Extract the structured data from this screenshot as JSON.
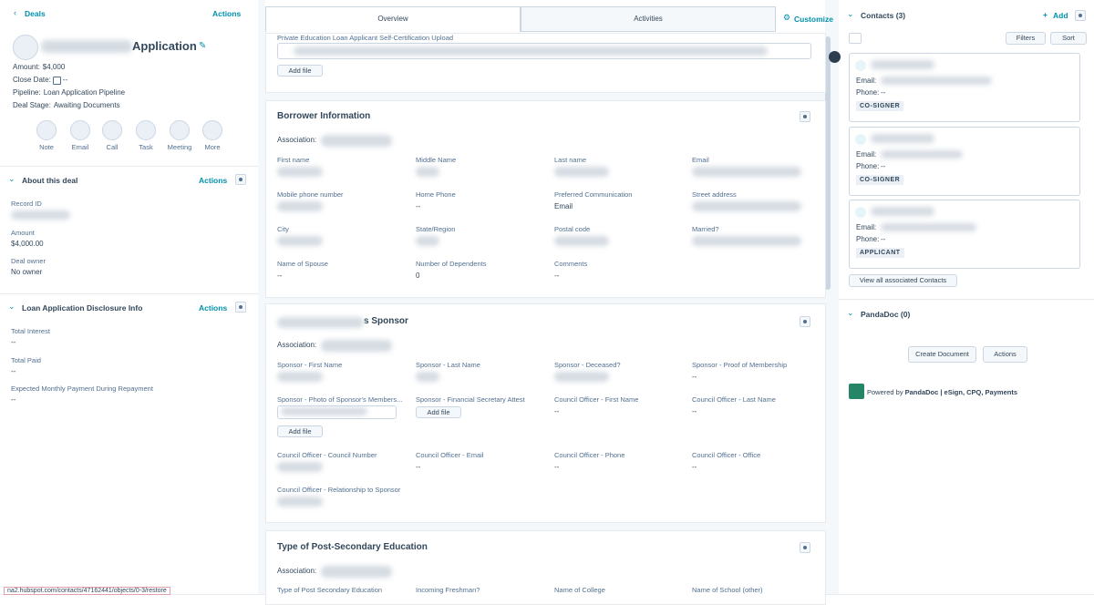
{
  "left": {
    "back": "Deals",
    "actions": "Actions",
    "title": "Application",
    "summary": [
      {
        "label": "Amount:",
        "value": "$4,000"
      },
      {
        "label": "Close Date:",
        "value": "--"
      },
      {
        "label": "Pipeline:",
        "value": "Loan Application Pipeline"
      },
      {
        "label": "Deal Stage:",
        "value": "Awaiting Documents"
      }
    ],
    "quick_actions": [
      "Note",
      "Email",
      "Call",
      "Task",
      "Meeting",
      "More"
    ],
    "sections": [
      {
        "title": "About this deal",
        "actions": "Actions",
        "fields": [
          {
            "label": "Record ID"
          },
          {
            "label": "Amount",
            "value": "$4,000.00"
          },
          {
            "label": "Deal owner",
            "value": "No owner"
          }
        ]
      },
      {
        "title": "Loan Application Disclosure Info",
        "actions": "Actions",
        "fields": [
          {
            "label": "Total Interest",
            "value": "--"
          },
          {
            "label": "Total Paid",
            "value": "--"
          },
          {
            "label": "Expected Monthly Payment During Repayment",
            "value": "--"
          }
        ]
      }
    ]
  },
  "status_url": "na2.hubspot.com/contacts/47162441/objects/0-3/restore",
  "middle": {
    "tabs": [
      "Overview",
      "Activities"
    ],
    "customize": "Customize",
    "upload": {
      "label": "Private Education Loan Applicant Self-Certification Upload",
      "button": "Add file"
    },
    "sections": [
      {
        "title": "Borrower Information",
        "association": "Association:",
        "fields": [
          {
            "label": "First name"
          },
          {
            "label": "Middle Name"
          },
          {
            "label": "Last name"
          },
          {
            "label": "Email"
          },
          {
            "label": "Mobile phone number"
          },
          {
            "label": "Home Phone",
            "value": "--"
          },
          {
            "label": "Preferred Communication",
            "value": "Email"
          },
          {
            "label": "Street address"
          },
          {
            "label": "City"
          },
          {
            "label": "State/Region"
          },
          {
            "label": "Postal code"
          },
          {
            "label": "Married?"
          },
          {
            "label": "Name of Spouse",
            "value": "--"
          },
          {
            "label": "Number of Dependents",
            "value": "0"
          },
          {
            "label": "Comments",
            "value": "--"
          }
        ]
      },
      {
        "title": "s Sponsor",
        "association": "Association:",
        "fields": [
          {
            "label": "Sponsor - First Name"
          },
          {
            "label": "Sponsor - Last Name"
          },
          {
            "label": "Sponsor - Deceased?"
          },
          {
            "label": "Sponsor - Proof of Membership",
            "value": "--"
          },
          {
            "label": "Sponsor - Photo of Sponsor's Members...",
            "button": "Add file"
          },
          {
            "label": "Sponsor - Financial Secretary Attest",
            "button": "Add file"
          },
          {
            "label": "Council Officer - First Name",
            "value": "--"
          },
          {
            "label": "Council Officer - Last Name",
            "value": "--"
          },
          {
            "label": "Council Officer - Council Number"
          },
          {
            "label": "Council Officer - Email",
            "value": "--"
          },
          {
            "label": "Council Officer - Phone",
            "value": "--"
          },
          {
            "label": "Council Officer - Office",
            "value": "--"
          },
          {
            "label": "Council Officer - Relationship to Sponsor"
          }
        ]
      },
      {
        "title": "Type of Post-Secondary Education",
        "association": "Association:",
        "fields": [
          {
            "label": "Type of Post Secondary Education"
          },
          {
            "label": "Incoming Freshman?"
          },
          {
            "label": "Name of College"
          },
          {
            "label": "Name of School (other)"
          }
        ]
      }
    ]
  },
  "right": {
    "contacts": {
      "title": "Contacts (3)",
      "add": "Add",
      "filters": "Filters",
      "sort": "Sort",
      "cards": [
        {
          "email_label": "Email:",
          "phone_label": "Phone:",
          "phone": "--",
          "role": "CO-SIGNER"
        },
        {
          "email_label": "Email:",
          "phone_label": "Phone:",
          "phone": "--",
          "role": "CO-SIGNER"
        },
        {
          "email_label": "Email:",
          "phone_label": "Phone:",
          "phone": "--",
          "role": "APPLICANT"
        }
      ],
      "view_all": "View all associated Contacts"
    },
    "pandadoc": {
      "title": "PandaDoc (0)",
      "create": "Create Document",
      "actions": "Actions",
      "powered_by": "Powered by",
      "brand": "PandaDoc | eSign, CPQ, Payments"
    }
  }
}
